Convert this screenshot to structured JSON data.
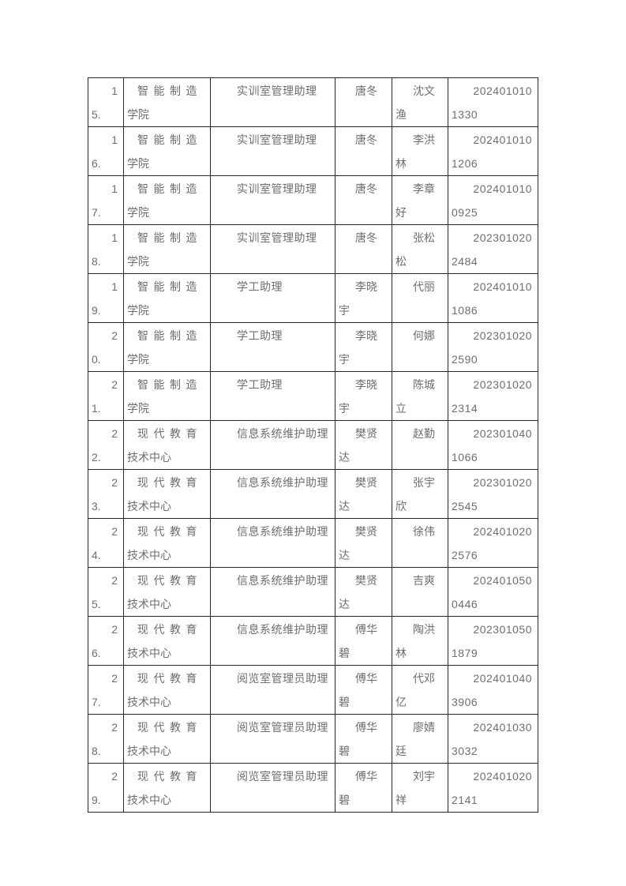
{
  "colors": {
    "page_background": "#ffffff",
    "table_border": "#262626",
    "text": "#6e6e6e"
  },
  "table": {
    "rows": [
      {
        "no": "15.",
        "no_lines": [
          "1",
          "5."
        ],
        "dept": "智能制造学院",
        "dept_lines": [
          "智能制造",
          "学院"
        ],
        "position": "实训室管理助理",
        "position_lines": [
          "实训室管理助理"
        ],
        "supervisor": "唐冬",
        "supervisor_lines": [
          "唐冬"
        ],
        "student": "沈文渔",
        "student_lines": [
          "沈文",
          "渔"
        ],
        "student_id": "2024010101330",
        "id_lines": [
          "202401010",
          "1330"
        ]
      },
      {
        "no": "16.",
        "no_lines": [
          "1",
          "6."
        ],
        "dept": "智能制造学院",
        "dept_lines": [
          "智能制造",
          "学院"
        ],
        "position": "实训室管理助理",
        "position_lines": [
          "实训室管理助理"
        ],
        "supervisor": "唐冬",
        "supervisor_lines": [
          "唐冬"
        ],
        "student": "李洪林",
        "student_lines": [
          "李洪",
          "林"
        ],
        "student_id": "2024010101206",
        "id_lines": [
          "202401010",
          "1206"
        ]
      },
      {
        "no": "17.",
        "no_lines": [
          "1",
          "7."
        ],
        "dept": "智能制造学院",
        "dept_lines": [
          "智能制造",
          "学院"
        ],
        "position": "实训室管理助理",
        "position_lines": [
          "实训室管理助理"
        ],
        "supervisor": "唐冬",
        "supervisor_lines": [
          "唐冬"
        ],
        "student": "李章好",
        "student_lines": [
          "李章",
          "好"
        ],
        "student_id": "2024010100925",
        "id_lines": [
          "202401010",
          "0925"
        ]
      },
      {
        "no": "18.",
        "no_lines": [
          "1",
          "8."
        ],
        "dept": "智能制造学院",
        "dept_lines": [
          "智能制造",
          "学院"
        ],
        "position": "实训室管理助理",
        "position_lines": [
          "实训室管理助理"
        ],
        "supervisor": "唐冬",
        "supervisor_lines": [
          "唐冬"
        ],
        "student": "张松松",
        "student_lines": [
          "张松",
          "松"
        ],
        "student_id": "2023010202484",
        "id_lines": [
          "202301020",
          "2484"
        ]
      },
      {
        "no": "19.",
        "no_lines": [
          "1",
          "9."
        ],
        "dept": "智能制造学院",
        "dept_lines": [
          "智能制造",
          "学院"
        ],
        "position": "学工助理",
        "position_lines": [
          "学工助理"
        ],
        "supervisor": "李晓宇",
        "supervisor_lines": [
          "李晓",
          "宇"
        ],
        "student": "代丽",
        "student_lines": [
          "代丽"
        ],
        "student_id": "2024010101086",
        "id_lines": [
          "202401010",
          "1086"
        ]
      },
      {
        "no": "20.",
        "no_lines": [
          "2",
          "0."
        ],
        "dept": "智能制造学院",
        "dept_lines": [
          "智能制造",
          "学院"
        ],
        "position": "学工助理",
        "position_lines": [
          "学工助理"
        ],
        "supervisor": "李晓宇",
        "supervisor_lines": [
          "李晓",
          "宇"
        ],
        "student": "何娜",
        "student_lines": [
          "何娜"
        ],
        "student_id": "2023010202590",
        "id_lines": [
          "202301020",
          "2590"
        ]
      },
      {
        "no": "21.",
        "no_lines": [
          "2",
          "1."
        ],
        "dept": "智能制造学院",
        "dept_lines": [
          "智能制造",
          "学院"
        ],
        "position": "学工助理",
        "position_lines": [
          "学工助理"
        ],
        "supervisor": "李晓宇",
        "supervisor_lines": [
          "李晓",
          "宇"
        ],
        "student": "陈城立",
        "student_lines": [
          "陈城",
          "立"
        ],
        "student_id": "2023010202314",
        "id_lines": [
          "202301020",
          "2314"
        ]
      },
      {
        "no": "22.",
        "no_lines": [
          "2",
          "2."
        ],
        "dept": "现代教育技术中心",
        "dept_lines": [
          "现代教育",
          "技术中心"
        ],
        "position": "信息系统维护助理",
        "position_lines": [
          "信息系统维护助理"
        ],
        "supervisor": "樊贤达",
        "supervisor_lines": [
          "樊贤",
          "达"
        ],
        "student": "赵勤",
        "student_lines": [
          "赵勤"
        ],
        "student_id": "2023010401066",
        "id_lines": [
          "202301040",
          "1066"
        ]
      },
      {
        "no": "23.",
        "no_lines": [
          "2",
          "3."
        ],
        "dept": "现代教育技术中心",
        "dept_lines": [
          "现代教育",
          "技术中心"
        ],
        "position": "信息系统维护助理",
        "position_lines": [
          "信息系统维护助理"
        ],
        "supervisor": "樊贤达",
        "supervisor_lines": [
          "樊贤",
          "达"
        ],
        "student": "张宇欣",
        "student_lines": [
          "张宇",
          "欣"
        ],
        "student_id": "2023010202545",
        "id_lines": [
          "202301020",
          "2545"
        ]
      },
      {
        "no": "24.",
        "no_lines": [
          "2",
          "4."
        ],
        "dept": "现代教育技术中心",
        "dept_lines": [
          "现代教育",
          "技术中心"
        ],
        "position": "信息系统维护助理",
        "position_lines": [
          "信息系统维护助理"
        ],
        "supervisor": "樊贤达",
        "supervisor_lines": [
          "樊贤",
          "达"
        ],
        "student": "徐伟",
        "student_lines": [
          "徐伟"
        ],
        "student_id": "2024010202576",
        "id_lines": [
          "202401020",
          "2576"
        ]
      },
      {
        "no": "25.",
        "no_lines": [
          "2",
          "5."
        ],
        "dept": "现代教育技术中心",
        "dept_lines": [
          "现代教育",
          "技术中心"
        ],
        "position": "信息系统维护助理",
        "position_lines": [
          "信息系统维护助理"
        ],
        "supervisor": "樊贤达",
        "supervisor_lines": [
          "樊贤",
          "达"
        ],
        "student": "吉爽",
        "student_lines": [
          "吉爽"
        ],
        "student_id": "2024010500446",
        "id_lines": [
          "202401050",
          "0446"
        ]
      },
      {
        "no": "26.",
        "no_lines": [
          "2",
          "6."
        ],
        "dept": "现代教育技术中心",
        "dept_lines": [
          "现代教育",
          "技术中心"
        ],
        "position": "信息系统维护助理",
        "position_lines": [
          "信息系统维护助理"
        ],
        "supervisor": "傅华碧",
        "supervisor_lines": [
          "傅华",
          "碧"
        ],
        "student": "陶洪林",
        "student_lines": [
          "陶洪",
          "林"
        ],
        "student_id": "2023010501879",
        "id_lines": [
          "202301050",
          "1879"
        ]
      },
      {
        "no": "27.",
        "no_lines": [
          "2",
          "7."
        ],
        "dept": "现代教育技术中心",
        "dept_lines": [
          "现代教育",
          "技术中心"
        ],
        "position": "阅览室管理员助理",
        "position_lines": [
          "阅览室管理员助理"
        ],
        "supervisor": "傅华碧",
        "supervisor_lines": [
          "傅华",
          "碧"
        ],
        "student": "代邓亿",
        "student_lines": [
          "代邓",
          "亿"
        ],
        "student_id": "2024010403906",
        "id_lines": [
          "202401040",
          "3906"
        ]
      },
      {
        "no": "28.",
        "no_lines": [
          "2",
          "8."
        ],
        "dept": "现代教育技术中心",
        "dept_lines": [
          "现代教育",
          "技术中心"
        ],
        "position": "阅览室管理员助理",
        "position_lines": [
          "阅览室管理员助理"
        ],
        "supervisor": "傅华碧",
        "supervisor_lines": [
          "傅华",
          "碧"
        ],
        "student": "廖婧廷",
        "student_lines": [
          "廖婧",
          "廷"
        ],
        "student_id": "2024010303032",
        "id_lines": [
          "202401030",
          "3032"
        ]
      },
      {
        "no": "29.",
        "no_lines": [
          "2",
          "9."
        ],
        "dept": "现代教育技术中心",
        "dept_lines": [
          "现代教育",
          "技术中心"
        ],
        "position": "阅览室管理员助理",
        "position_lines": [
          "阅览室管理员助理"
        ],
        "supervisor": "傅华碧",
        "supervisor_lines": [
          "傅华",
          "碧"
        ],
        "student": "刘宇祥",
        "student_lines": [
          "刘宇",
          "祥"
        ],
        "student_id": "2024010202141",
        "id_lines": [
          "202401020",
          "2141"
        ]
      }
    ]
  }
}
